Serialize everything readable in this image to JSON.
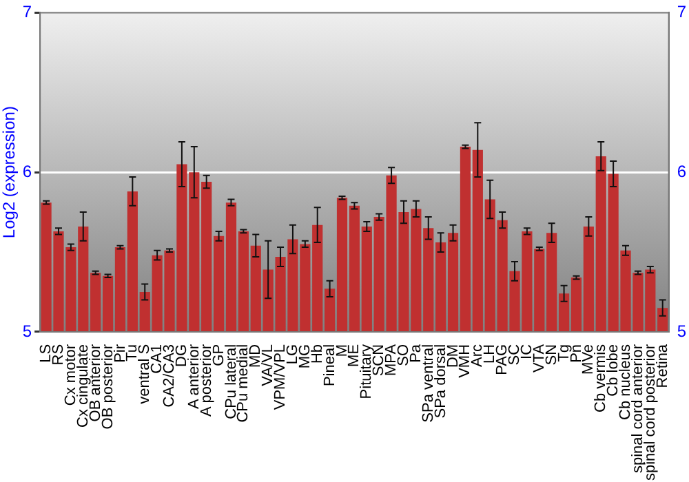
{
  "chart_data": {
    "type": "bar",
    "ylabel": "Log2 (expression)",
    "categories": [
      "LS",
      "RS",
      "Cx motor",
      "Cx cingulate",
      "OB anterior",
      "OB posterior",
      "Pir",
      "Tu",
      "ventral S",
      "CA1",
      "CA2/CA3",
      "DG",
      "A anterior",
      "A posterior",
      "GP",
      "CPu lateral",
      "CPu medial",
      "MD",
      "VA/VL",
      "VPM/VPL",
      "LG",
      "MG",
      "Hb",
      "Pineal",
      "M",
      "ME",
      "Pituitary",
      "SCN",
      "MPA",
      "SO",
      "Pa",
      "SPa ventral",
      "SPa dorsal",
      "DM",
      "VMH",
      "Arc",
      "LH",
      "PAG",
      "SC",
      "IC",
      "VTA",
      "SN",
      "Tg",
      "Pn",
      "MVe",
      "Cb vermis",
      "Cb lobe",
      "Cb nucleus",
      "spinal cord anterior",
      "spinal cord posterior",
      "Retina"
    ],
    "series": [
      {
        "color": "#c03030",
        "values": [
          5.81,
          5.63,
          5.53,
          5.66,
          5.37,
          5.35,
          5.53,
          5.88,
          5.25,
          5.48,
          5.51,
          6.05,
          6.0,
          5.94,
          5.6,
          5.81,
          5.63,
          5.54,
          5.39,
          5.47,
          5.58,
          5.55,
          5.67,
          5.27,
          5.84,
          5.79,
          5.66,
          5.72,
          5.98,
          5.75,
          5.77,
          5.65,
          5.56,
          5.62,
          6.16,
          6.14,
          5.83,
          5.7,
          5.38,
          5.63,
          5.52,
          5.62,
          5.24,
          5.34,
          5.66,
          6.1,
          5.99,
          5.51,
          5.37,
          5.39,
          5.15
        ],
        "errors": [
          0.01,
          0.02,
          0.02,
          0.09,
          0.01,
          0.01,
          0.01,
          0.09,
          0.05,
          0.03,
          0.01,
          0.14,
          0.16,
          0.04,
          0.03,
          0.02,
          0.01,
          0.07,
          0.18,
          0.06,
          0.09,
          0.02,
          0.11,
          0.05,
          0.01,
          0.02,
          0.03,
          0.02,
          0.05,
          0.07,
          0.05,
          0.07,
          0.06,
          0.05,
          0.01,
          0.17,
          0.12,
          0.05,
          0.06,
          0.02,
          0.01,
          0.06,
          0.05,
          0.01,
          0.06,
          0.09,
          0.08,
          0.03,
          0.01,
          0.02,
          0.05
        ]
      }
    ],
    "ylim": [
      5,
      7
    ],
    "yticks": [
      5,
      6,
      7
    ],
    "y2lim": [
      5,
      7
    ],
    "y2ticks": [
      5,
      6,
      7
    ],
    "grid": "y",
    "legend": false
  }
}
